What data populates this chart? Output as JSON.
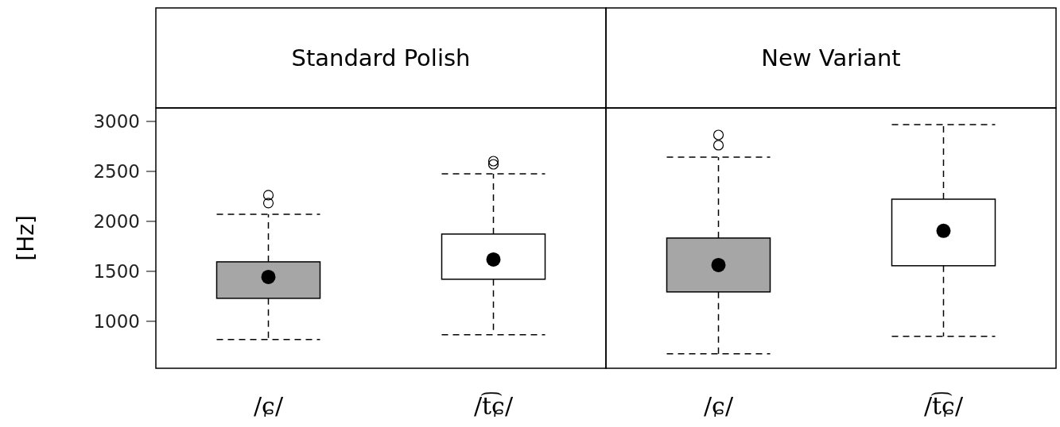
{
  "chart_data": [
    {
      "type": "box",
      "title": "Standard Polish",
      "ylabel": "[Hz]",
      "categories": [
        "/ɕ/",
        "/t͡ɕ/"
      ],
      "colors": [
        "#a6a6a6",
        "#ffffff"
      ],
      "line_style": "dashed",
      "ylim": [
        530,
        3135
      ],
      "yticks": [
        1000,
        1500,
        2000,
        2500,
        3000
      ],
      "boxes": [
        {
          "low": 817,
          "q1": 1230,
          "median": 1444,
          "q3": 1595,
          "high": 2070,
          "outliers": [
            2183,
            2262
          ]
        },
        {
          "low": 865,
          "q1": 1421,
          "median": 1619,
          "q3": 1873,
          "high": 2476,
          "outliers": [
            2571,
            2603
          ]
        }
      ]
    },
    {
      "type": "box",
      "title": "New Variant",
      "categories": [
        "/ɕ/",
        "/t͡ɕ/"
      ],
      "colors": [
        "#a6a6a6",
        "#ffffff"
      ],
      "line_style": "dashed",
      "ylim": [
        530,
        3135
      ],
      "tick_labels": "x",
      "boxes": [
        {
          "low": 675,
          "q1": 1294,
          "median": 1563,
          "q3": 1833,
          "high": 2643,
          "outliers": [
            2762,
            2865
          ]
        },
        {
          "low": 849,
          "q1": 1556,
          "median": 1905,
          "q3": 2222,
          "high": 2968
        }
      ]
    }
  ]
}
